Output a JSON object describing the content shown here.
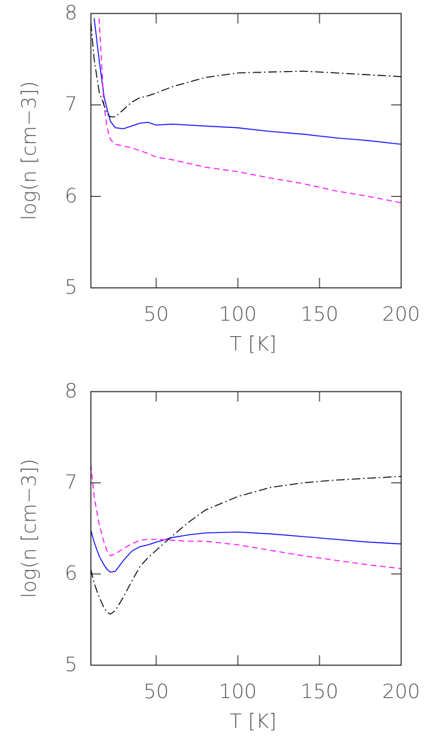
{
  "chart_data": [
    {
      "type": "line",
      "xlabel": "T [K]",
      "ylabel": "log(n [cm−3])",
      "x": [
        10,
        12,
        15,
        18,
        20,
        22,
        25,
        30,
        35,
        40,
        45,
        50,
        60,
        70,
        80,
        100,
        120,
        140,
        160,
        180,
        200
      ],
      "series": [
        {
          "color": "#0000ff",
          "dash": "solid",
          "values": [
            null,
            7.95,
            7.5,
            7.1,
            6.95,
            6.82,
            6.75,
            6.74,
            6.77,
            6.8,
            6.81,
            6.78,
            6.79,
            6.78,
            6.77,
            6.75,
            6.71,
            6.68,
            6.64,
            6.61,
            6.57
          ]
        },
        {
          "color": "#ff00ff",
          "dash": "dashed",
          "values": [
            null,
            null,
            7.95,
            7.0,
            6.75,
            6.62,
            6.57,
            6.55,
            6.53,
            6.5,
            6.47,
            6.43,
            6.4,
            6.36,
            6.32,
            6.27,
            6.2,
            6.14,
            6.06,
            6.0,
            5.93
          ]
        },
        {
          "color": "#000000",
          "dash": "dashdot",
          "values": [
            7.9,
            7.5,
            7.15,
            7.0,
            6.9,
            6.87,
            6.87,
            6.95,
            7.03,
            7.08,
            7.1,
            7.13,
            7.2,
            7.25,
            7.3,
            7.35,
            7.36,
            7.37,
            7.35,
            7.33,
            7.31
          ]
        }
      ],
      "xlim": [
        10,
        200
      ],
      "ylim": [
        5,
        8
      ],
      "xticks": [
        50,
        100,
        150,
        200
      ],
      "yticks": [
        5,
        6,
        7,
        8
      ],
      "grid": false
    },
    {
      "type": "line",
      "xlabel": "T [K]",
      "ylabel": "log(n [cm−3])",
      "x": [
        10,
        12,
        15,
        18,
        20,
        22,
        25,
        30,
        35,
        40,
        45,
        50,
        60,
        70,
        80,
        100,
        120,
        140,
        160,
        180,
        200
      ],
      "series": [
        {
          "color": "#0000ff",
          "dash": "solid",
          "values": [
            6.48,
            6.35,
            6.2,
            6.1,
            6.05,
            6.02,
            6.03,
            6.15,
            6.25,
            6.3,
            6.32,
            6.35,
            6.4,
            6.43,
            6.45,
            6.46,
            6.44,
            6.41,
            6.38,
            6.35,
            6.33
          ]
        },
        {
          "color": "#ff00ff",
          "dash": "dashed",
          "values": [
            7.2,
            6.85,
            6.55,
            6.35,
            6.25,
            6.2,
            6.22,
            6.28,
            6.33,
            6.37,
            6.38,
            6.38,
            6.37,
            6.36,
            6.36,
            6.32,
            6.26,
            6.2,
            6.15,
            6.1,
            6.06
          ]
        },
        {
          "color": "#000000",
          "dash": "dashdot",
          "values": [
            6.05,
            5.9,
            5.75,
            5.63,
            5.58,
            5.56,
            5.6,
            5.75,
            5.92,
            6.08,
            6.18,
            6.26,
            6.42,
            6.57,
            6.7,
            6.85,
            6.95,
            7.0,
            7.03,
            7.05,
            7.07
          ]
        }
      ],
      "xlim": [
        10,
        200
      ],
      "ylim": [
        5,
        8
      ],
      "xticks": [
        50,
        100,
        150,
        200
      ],
      "yticks": [
        5,
        6,
        7,
        8
      ],
      "grid": false
    }
  ]
}
